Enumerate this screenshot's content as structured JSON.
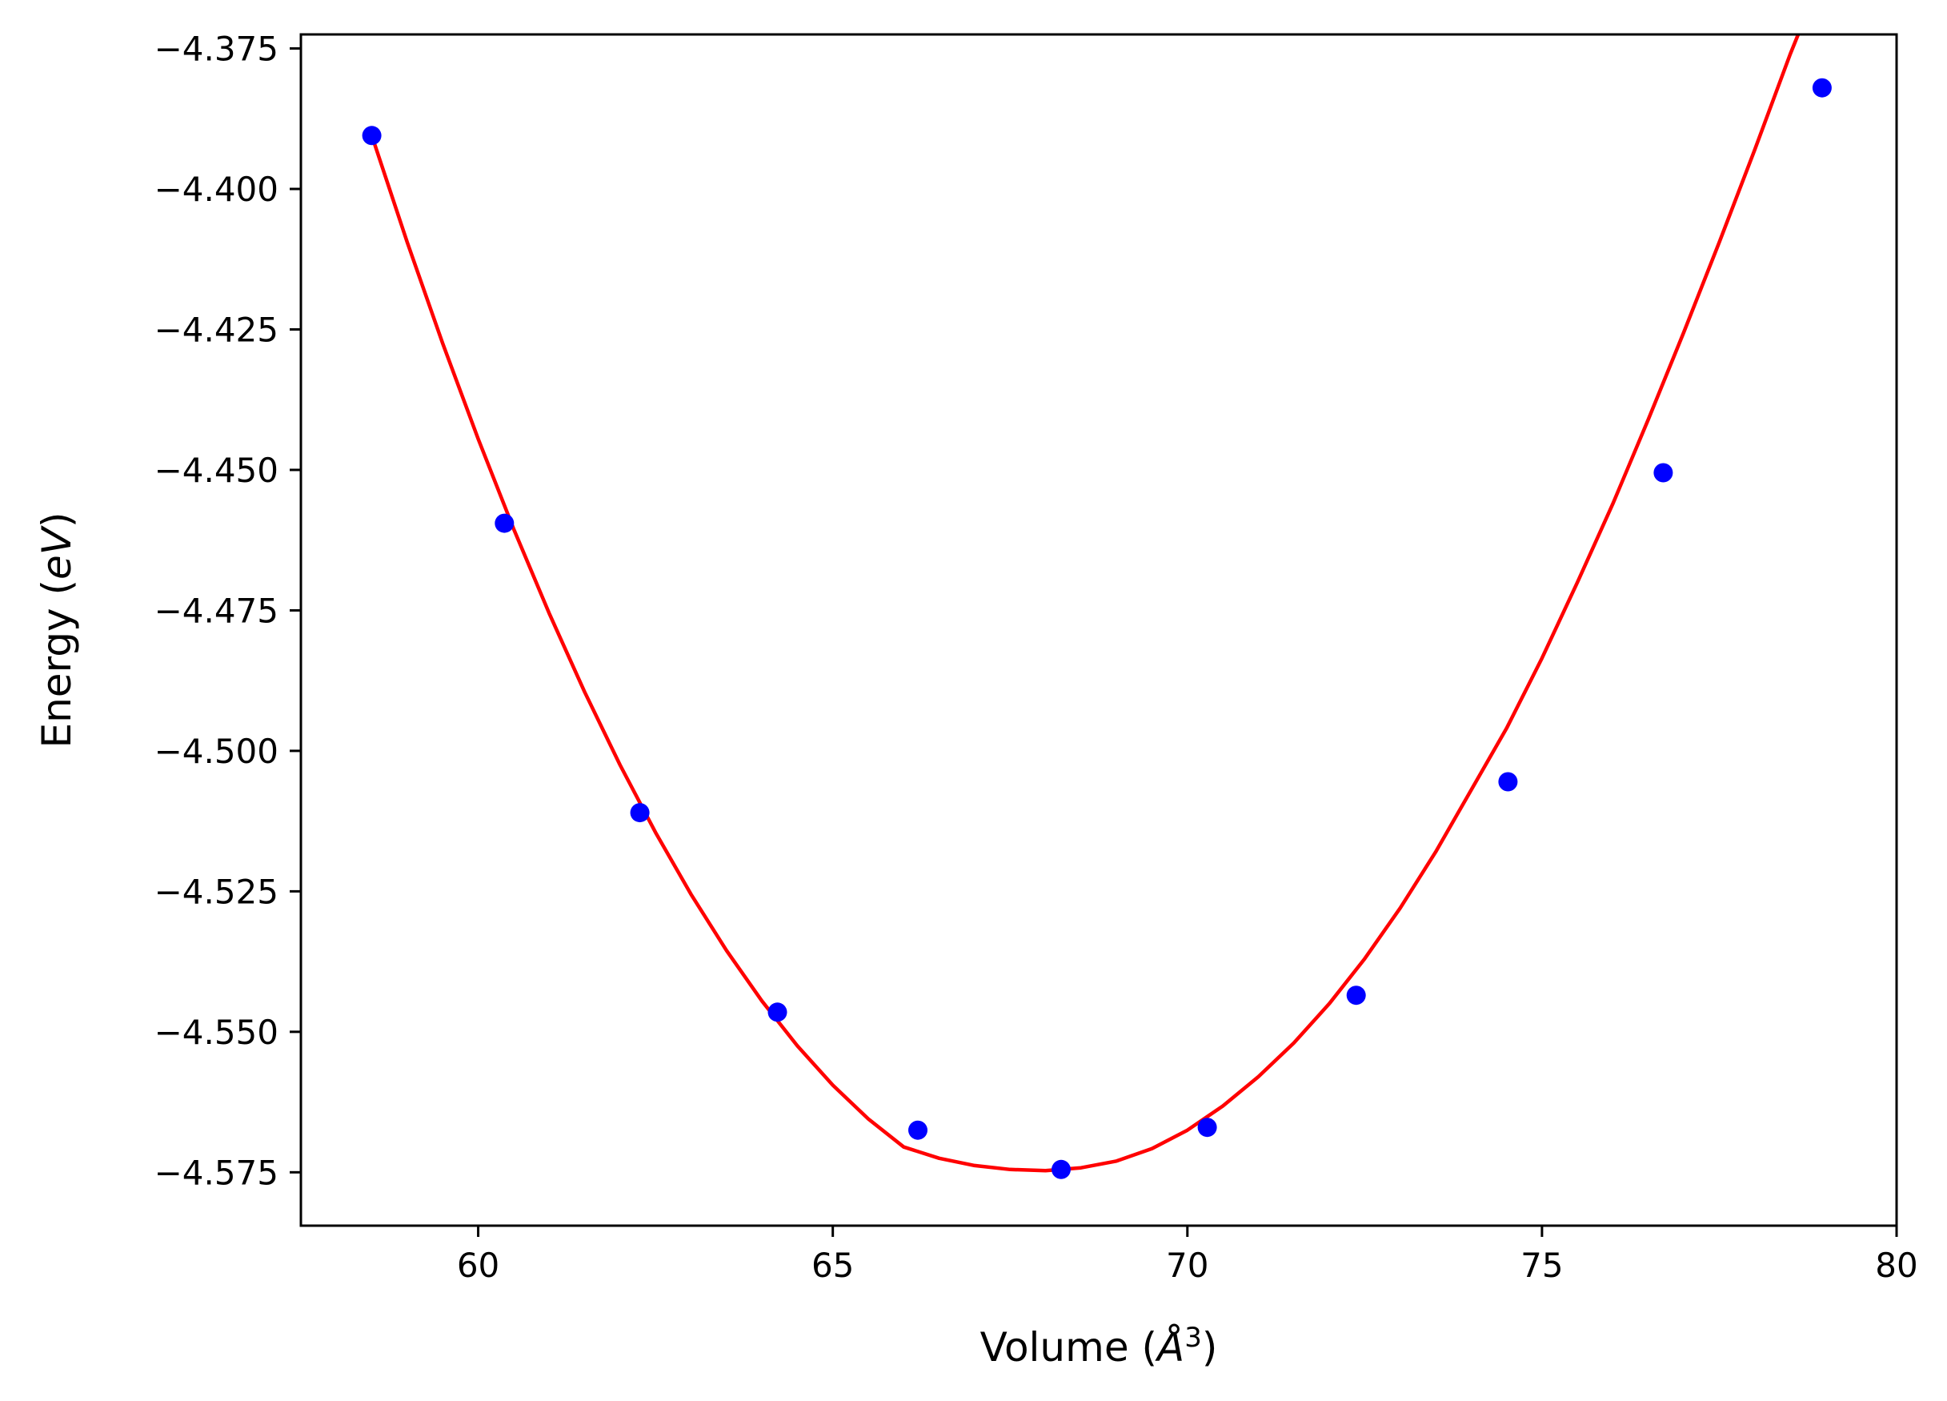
{
  "chart_data": {
    "type": "scatter",
    "xlabel": "Volume (Å³)",
    "xlabel_parts": {
      "pre": "Volume (",
      "unit": "Å",
      "sup": "3",
      "post": ")"
    },
    "ylabel": "Energy (eV)",
    "ylabel_parts": {
      "pre": "Energy (",
      "unit": "eV",
      "post": ")"
    },
    "xlim": [
      57.5,
      80
    ],
    "ylim": [
      -4.5845,
      -4.3725
    ],
    "x_ticks": [
      60,
      65,
      70,
      75,
      80
    ],
    "y_ticks": [
      -4.375,
      -4.4,
      -4.425,
      -4.45,
      -4.475,
      -4.5,
      -4.525,
      -4.55,
      -4.575
    ],
    "x_tick_labels": [
      "60",
      "65",
      "70",
      "75",
      "80"
    ],
    "y_tick_labels": [
      "−4.375",
      "−4.400",
      "−4.425",
      "−4.450",
      "−4.475",
      "−4.500",
      "−4.525",
      "−4.550",
      "−4.575"
    ],
    "grid": false,
    "legend": "none",
    "series": [
      {
        "kind": "points",
        "color": "#0000ff",
        "x": [
          58.5,
          60.37,
          62.28,
          64.22,
          66.2,
          68.22,
          70.28,
          72.38,
          74.52,
          76.71,
          78.95
        ],
        "y": [
          -4.3905,
          -4.4595,
          -4.511,
          -4.5465,
          -4.5675,
          -4.5745,
          -4.567,
          -4.5435,
          -4.5055,
          -4.4505,
          -4.382
        ]
      },
      {
        "kind": "fit-curve",
        "color": "#ff0000",
        "x": [
          58.5,
          59.0,
          59.5,
          60.0,
          60.5,
          61.0,
          61.5,
          62.0,
          62.5,
          63.0,
          63.5,
          64.0,
          64.5,
          65.0,
          65.5,
          66.0,
          66.5,
          67.0,
          67.5,
          68.0,
          68.5,
          69.0,
          69.5,
          70.0,
          70.5,
          71.0,
          71.5,
          72.0,
          72.5,
          73.0,
          73.5,
          74.0,
          74.5,
          75.0,
          75.5,
          76.0,
          76.5,
          77.0,
          77.5,
          78.0,
          78.5,
          78.95
        ],
        "y": [
          -4.3905,
          -4.4095,
          -4.4275,
          -4.4445,
          -4.4605,
          -4.4755,
          -4.4895,
          -4.5025,
          -4.5145,
          -4.5255,
          -4.5355,
          -4.5445,
          -4.5525,
          -4.5595,
          -4.5655,
          -4.5705,
          -4.5725,
          -4.5738,
          -4.5745,
          -4.5747,
          -4.5742,
          -4.573,
          -4.5708,
          -4.5675,
          -4.5632,
          -4.558,
          -4.552,
          -4.545,
          -4.537,
          -4.528,
          -4.518,
          -4.507,
          -4.496,
          -4.4835,
          -4.47,
          -4.456,
          -4.441,
          -4.4255,
          -4.4095,
          -4.393,
          -4.376,
          -4.362
        ]
      }
    ]
  }
}
